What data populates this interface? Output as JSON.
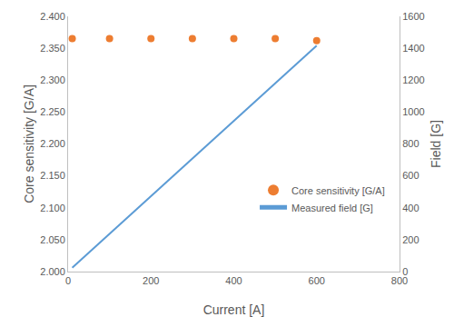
{
  "chart_data": {
    "type": "scatter",
    "xlabel": "Current [A]",
    "ylabel": "Core sensitivity [G/A]",
    "y2label": "Field [G]",
    "xlim": [
      0,
      800
    ],
    "xticks": [
      0,
      200,
      400,
      600,
      800
    ],
    "ylim": [
      2.0,
      2.4
    ],
    "yticks": [
      {
        "value": 2.0,
        "label": "2.000"
      },
      {
        "value": 2.05,
        "label": "2.050"
      },
      {
        "value": 2.1,
        "label": "2.100"
      },
      {
        "value": 2.15,
        "label": "2.150"
      },
      {
        "value": 2.2,
        "label": "2.200"
      },
      {
        "value": 2.25,
        "label": "2.250"
      },
      {
        "value": 2.3,
        "label": "2.300"
      },
      {
        "value": 2.35,
        "label": "2.350"
      },
      {
        "value": 2.4,
        "label": "2.400"
      }
    ],
    "y2lim": [
      0,
      1600
    ],
    "y2ticks": [
      0,
      200,
      400,
      600,
      800,
      1000,
      1200,
      1400,
      1600
    ],
    "grid": false,
    "legend": "lower right",
    "series": [
      {
        "name": "Core sensitivity [G/A]",
        "type": "scatter",
        "marker": "circle",
        "color": "#ed7d31",
        "x": [
          10,
          100,
          200,
          300,
          400,
          500,
          600
        ],
        "values": [
          2.365,
          2.365,
          2.365,
          2.365,
          2.365,
          2.365,
          2.362
        ]
      },
      {
        "name": "Measured field [G]",
        "type": "line",
        "line_style": "solid",
        "color": "#5b9bd5",
        "axis": "y2",
        "x": [
          10,
          100,
          200,
          300,
          400,
          500,
          600
        ],
        "values": [
          24,
          236,
          473,
          709,
          946,
          1182,
          1417
        ]
      }
    ]
  }
}
